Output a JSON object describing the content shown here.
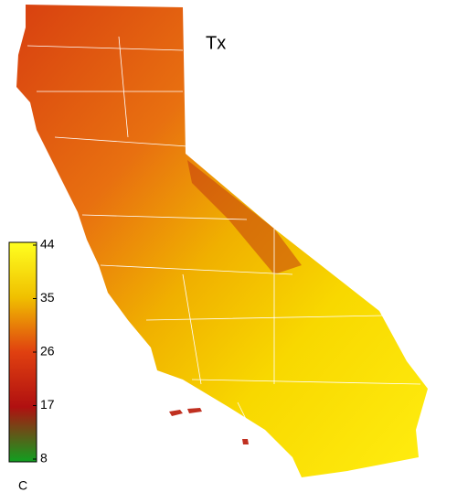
{
  "title": "Tx",
  "colorbar": {
    "lim": [
      8,
      44
    ],
    "ticks": [
      44,
      35,
      26,
      17,
      8
    ],
    "unit": "C",
    "stops": [
      {
        "value": 8,
        "color": "#10a020"
      },
      {
        "value": 17,
        "color": "#b01010"
      },
      {
        "value": 26,
        "color": "#e04010"
      },
      {
        "value": 35,
        "color": "#f0c000"
      },
      {
        "value": 44,
        "color": "#ffff20"
      }
    ]
  }
}
